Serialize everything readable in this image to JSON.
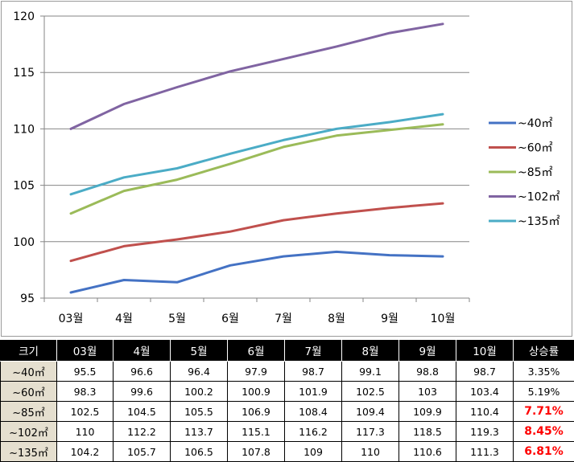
{
  "chart_data": {
    "type": "line",
    "categories": [
      "03월",
      "4월",
      "5월",
      "6월",
      "7월",
      "8월",
      "9월",
      "10월"
    ],
    "ylim": [
      95,
      120
    ],
    "yticks": [
      95,
      100,
      105,
      110,
      115,
      120
    ],
    "grid": true,
    "legend_position": "right",
    "series": [
      {
        "name": "~40㎡",
        "color": "#4472c4",
        "values": [
          95.5,
          96.6,
          96.4,
          97.9,
          98.7,
          99.1,
          98.8,
          98.7
        ]
      },
      {
        "name": "~60㎡",
        "color": "#c0504d",
        "values": [
          98.3,
          99.6,
          100.2,
          100.9,
          101.9,
          102.5,
          103,
          103.4
        ]
      },
      {
        "name": "~85㎡",
        "color": "#9bbb59",
        "values": [
          102.5,
          104.5,
          105.5,
          106.9,
          108.4,
          109.4,
          109.9,
          110.4
        ]
      },
      {
        "name": "~102㎡",
        "color": "#8064a2",
        "values": [
          110,
          112.2,
          113.7,
          115.1,
          116.2,
          117.3,
          118.5,
          119.3
        ]
      },
      {
        "name": "~135㎡",
        "color": "#4bacc6",
        "values": [
          104.2,
          105.7,
          106.5,
          107.8,
          109,
          110,
          110.6,
          111.3
        ]
      }
    ]
  },
  "table": {
    "headers": [
      "크기",
      "03월",
      "4월",
      "5월",
      "6월",
      "7월",
      "8월",
      "9월",
      "10월",
      "상승률"
    ],
    "rows": [
      {
        "label": "~40㎡",
        "cells": [
          "95.5",
          "96.6",
          "96.4",
          "97.9",
          "98.7",
          "99.1",
          "98.8",
          "98.7",
          "3.35%"
        ],
        "highlight": false
      },
      {
        "label": "~60㎡",
        "cells": [
          "98.3",
          "99.6",
          "100.2",
          "100.9",
          "101.9",
          "102.5",
          "103",
          "103.4",
          "5.19%"
        ],
        "highlight": false
      },
      {
        "label": "~85㎡",
        "cells": [
          "102.5",
          "104.5",
          "105.5",
          "106.9",
          "108.4",
          "109.4",
          "109.9",
          "110.4",
          "7.71%"
        ],
        "highlight": true
      },
      {
        "label": "~102㎡",
        "cells": [
          "110",
          "112.2",
          "113.7",
          "115.1",
          "116.2",
          "117.3",
          "118.5",
          "119.3",
          "8.45%"
        ],
        "highlight": true
      },
      {
        "label": "~135㎡",
        "cells": [
          "104.2",
          "105.7",
          "106.5",
          "107.8",
          "109",
          "110",
          "110.6",
          "111.3",
          "6.81%"
        ],
        "highlight": true
      }
    ],
    "highlight_color": "#ff0000",
    "rowhead_color": "#e5dfcf"
  }
}
